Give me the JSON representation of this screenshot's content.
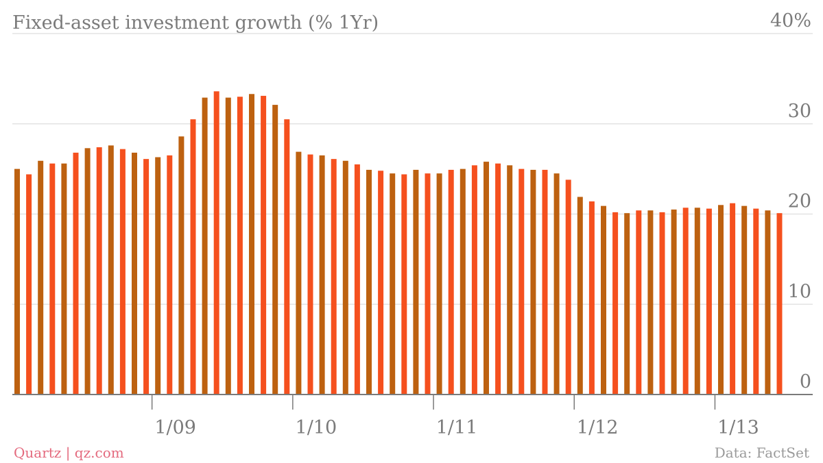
{
  "chart_data": {
    "type": "bar",
    "title": "Fixed-asset investment growth (% 1Yr)",
    "ylabel": "",
    "xlabel": "",
    "y_ticks": [
      "0",
      "10",
      "20",
      "30",
      "40%"
    ],
    "y_tick_values": [
      0,
      10,
      20,
      30,
      40
    ],
    "ylim": [
      0,
      40
    ],
    "x_tick_labels": [
      "1/09",
      "1/10",
      "1/11",
      "1/12",
      "1/13"
    ],
    "x_tick_indices": [
      12,
      24,
      36,
      48,
      60
    ],
    "grid": true,
    "values": [
      25.0,
      24.4,
      25.9,
      25.6,
      25.6,
      26.8,
      27.3,
      27.4,
      27.6,
      27.2,
      26.8,
      26.1,
      26.3,
      26.5,
      28.6,
      30.5,
      32.9,
      33.6,
      32.9,
      33.0,
      33.3,
      33.1,
      32.1,
      30.5,
      26.9,
      26.6,
      26.5,
      26.1,
      25.9,
      25.5,
      24.9,
      24.8,
      24.5,
      24.4,
      24.9,
      24.5,
      24.5,
      24.9,
      25.0,
      25.4,
      25.8,
      25.6,
      25.4,
      25.0,
      24.9,
      24.9,
      24.5,
      23.8,
      21.9,
      21.4,
      20.9,
      20.2,
      20.1,
      20.4,
      20.4,
      20.2,
      20.5,
      20.7,
      20.7,
      20.6,
      21.0,
      21.2,
      20.9,
      20.6,
      20.4,
      20.1
    ],
    "colors": {
      "bar": "#bd6110",
      "bar_alt": "#f5501e",
      "grid": "#e3e3e3",
      "axis": "#7a7a7a"
    }
  },
  "footer": {
    "brand": "Quartz | qz.com",
    "source": "Data: FactSet"
  }
}
